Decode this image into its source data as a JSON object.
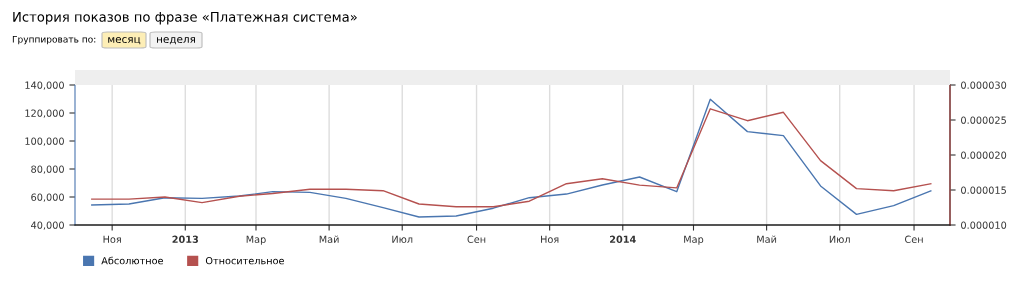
{
  "chart_data": {
    "type": "line",
    "title": "История показов по фразе «Платежная система»",
    "annotations": [
      "Группировать по:",
      "месяц",
      "неделя"
    ],
    "x": [
      "2012-10-15",
      "2012-11-15",
      "2012-12-15",
      "2013-01-15",
      "2013-02-15",
      "2013-03-15",
      "2013-04-15",
      "2013-05-15",
      "2013-06-15",
      "2013-07-15",
      "2013-08-15",
      "2013-09-15",
      "2013-10-15",
      "2013-11-15",
      "2013-12-15",
      "2014-01-15",
      "2014-02-15",
      "2014-03-15",
      "2014-04-15",
      "2014-05-15",
      "2014-06-15",
      "2014-07-15",
      "2014-08-15",
      "2014-09-15"
    ],
    "series": [
      {
        "name": "Абсолютное",
        "color": "#4a76b0",
        "values": [
          54300,
          55000,
          59500,
          59000,
          60700,
          63800,
          63300,
          59000,
          52400,
          45700,
          46400,
          52000,
          59500,
          62100,
          68600,
          74300,
          63800,
          129800,
          106700,
          103800,
          67900,
          47600,
          53800,
          64300
        ]
      },
      {
        "name": "Относительное",
        "color": "#b5514f",
        "axis": "y2",
        "values": [
          1.37e-05,
          1.37e-05,
          1.4e-05,
          1.32e-05,
          1.41e-05,
          1.45e-05,
          1.51e-05,
          1.51e-05,
          1.49e-05,
          1.3e-05,
          1.26e-05,
          1.26e-05,
          1.34e-05,
          1.59e-05,
          1.66e-05,
          1.57e-05,
          1.53e-05,
          2.66e-05,
          2.49e-05,
          2.61e-05,
          1.92e-05,
          1.52e-05,
          1.49e-05,
          1.59e-05
        ]
      }
    ],
    "xlim": [
      "2012-10-01",
      "2014-10-01"
    ],
    "xticks": [
      {
        "value": "2012-11-01",
        "label": "Ноя"
      },
      {
        "value": "2013-01-01",
        "label": "2013"
      },
      {
        "value": "2013-03-01",
        "label": "Мар"
      },
      {
        "value": "2013-05-01",
        "label": "Май"
      },
      {
        "value": "2013-07-01",
        "label": "Июл"
      },
      {
        "value": "2013-09-01",
        "label": "Сен"
      },
      {
        "value": "2013-11-01",
        "label": "Ноя"
      },
      {
        "value": "2014-01-01",
        "label": "2014"
      },
      {
        "value": "2014-03-01",
        "label": "Мар"
      },
      {
        "value": "2014-05-01",
        "label": "Май"
      },
      {
        "value": "2014-07-01",
        "label": "Июл"
      },
      {
        "value": "2014-09-01",
        "label": "Сен"
      }
    ],
    "ylim": [
      40000,
      140000
    ],
    "yticks": [
      {
        "value": 40000,
        "label": "40,000"
      },
      {
        "value": 60000,
        "label": "60,000"
      },
      {
        "value": 80000,
        "label": "80,000"
      },
      {
        "value": 100000,
        "label": "100,000"
      },
      {
        "value": 120000,
        "label": "120,000"
      },
      {
        "value": 140000,
        "label": "140,000"
      }
    ],
    "y2lim": [
      1e-05,
      3e-05
    ],
    "y2ticks": [
      {
        "value": 1e-05,
        "label": "0.000010"
      },
      {
        "value": 1.5e-05,
        "label": "0.000015"
      },
      {
        "value": 2e-05,
        "label": "0.000020"
      },
      {
        "value": 2.5e-05,
        "label": "0.000025"
      },
      {
        "value": 3e-05,
        "label": "0.000030"
      }
    ],
    "grid": "x",
    "legend": "bottom left",
    "marker": "none",
    "line_style": "solid"
  }
}
